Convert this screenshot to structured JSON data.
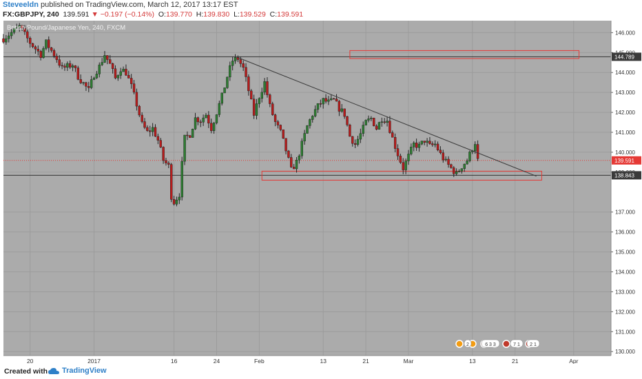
{
  "header": {
    "author": "Steveeldn",
    "published": "published on TradingView.com, March 12, 2017 13:17 EST",
    "symbol": "FX:GBPJPY, 240",
    "last": "139.591",
    "change": "−0.197 (−0.14%)",
    "o_label": "O:",
    "o_value": "139.770",
    "h_label": "H:",
    "h_value": "139.830",
    "l_label": "L:",
    "l_value": "139.529",
    "c_label": "C:",
    "c_value": "139.591"
  },
  "footer": {
    "created_with": "Created with",
    "brand": "TradingView"
  },
  "colors": {
    "plot_bg": "#ababab",
    "up": "#2e7d32",
    "down": "#b71c1c",
    "zone": "#e53935",
    "accent": "#2f80c8"
  },
  "chart_data": {
    "type": "candlestick",
    "title": "British Pound/Japanese Yen, 240, FXCM",
    "ylim": [
      129.8,
      146.6
    ],
    "y_ticks": [
      "146.000",
      "145.000",
      "144.000",
      "143.000",
      "142.000",
      "141.000",
      "140.000",
      "139.000",
      "137.000",
      "136.000",
      "135.000",
      "134.000",
      "133.000",
      "132.000",
      "131.000",
      "130.000"
    ],
    "x_ticks": [
      {
        "label": "20",
        "d": 5
      },
      {
        "label": "2017",
        "d": 17
      },
      {
        "label": "16",
        "d": 32
      },
      {
        "label": "24",
        "d": 40
      },
      {
        "label": "Feb",
        "d": 48
      },
      {
        "label": "13",
        "d": 60
      },
      {
        "label": "21",
        "d": 68
      },
      {
        "label": "Mar",
        "d": 76
      },
      {
        "label": "13",
        "d": 88
      },
      {
        "label": "21",
        "d": 96
      },
      {
        "label": "Apr",
        "d": 107
      }
    ],
    "x_range": [
      0,
      114
    ],
    "price_labels": [
      {
        "value": 144.789,
        "text": "144.789",
        "style": "dark"
      },
      {
        "value": 139.591,
        "text": "139.591",
        "style": "red"
      },
      {
        "value": 138.843,
        "text": "138.843",
        "style": "dark"
      }
    ],
    "horizontal_lines": [
      {
        "value": 144.789,
        "style": "solid"
      },
      {
        "value": 138.843,
        "style": "solid"
      },
      {
        "value": 139.591,
        "style": "dotted-red"
      }
    ],
    "trendline": {
      "x1": 44,
      "y1": 144.75,
      "x2": 100,
      "y2": 138.8
    },
    "zones": [
      {
        "x1": 65,
        "x2": 108,
        "y1": 144.7,
        "y2": 145.1
      },
      {
        "x1": 48.5,
        "x2": 101,
        "y1": 138.6,
        "y2": 139.05
      }
    ],
    "path": [
      [
        0,
        145.7
      ],
      [
        3,
        146.3
      ],
      [
        5,
        145.5
      ],
      [
        7,
        144.9
      ],
      [
        8,
        145.5
      ],
      [
        10,
        144.7
      ],
      [
        11,
        144.2
      ],
      [
        13,
        144.4
      ],
      [
        14,
        143.8
      ],
      [
        16,
        143.1
      ],
      [
        17,
        143.9
      ],
      [
        18,
        144.3
      ],
      [
        19,
        144.9
      ],
      [
        20,
        144.4
      ],
      [
        21,
        143.7
      ],
      [
        22,
        144.2
      ],
      [
        23,
        144.0
      ],
      [
        24,
        143.3
      ],
      [
        25,
        142.4
      ],
      [
        26,
        141.4
      ],
      [
        27,
        141.0
      ],
      [
        28,
        141.2
      ],
      [
        29,
        140.6
      ],
      [
        30,
        139.6
      ],
      [
        31,
        139.3
      ],
      [
        31.5,
        137.8
      ],
      [
        32,
        137.5
      ],
      [
        33,
        137.9
      ],
      [
        33.5,
        139.4
      ],
      [
        34,
        140.7
      ],
      [
        35,
        140.9
      ],
      [
        36,
        141.7
      ],
      [
        37,
        141.6
      ],
      [
        38,
        141.9
      ],
      [
        39,
        141.2
      ],
      [
        40,
        142.0
      ],
      [
        41,
        142.8
      ],
      [
        42,
        143.8
      ],
      [
        43,
        144.6
      ],
      [
        44,
        144.7
      ],
      [
        45,
        144.2
      ],
      [
        46,
        143.1
      ],
      [
        47,
        141.9
      ],
      [
        48,
        142.8
      ],
      [
        49,
        143.5
      ],
      [
        50,
        142.3
      ],
      [
        51,
        141.5
      ],
      [
        52,
        141.0
      ],
      [
        53,
        140.1
      ],
      [
        54,
        139.1
      ],
      [
        55,
        139.5
      ],
      [
        56,
        140.4
      ],
      [
        57,
        141.3
      ],
      [
        58,
        141.9
      ],
      [
        59,
        142.3
      ],
      [
        60,
        142.6
      ],
      [
        61,
        142.5
      ],
      [
        62,
        142.6
      ],
      [
        63,
        142.2
      ],
      [
        64,
        141.9
      ],
      [
        65,
        140.8
      ],
      [
        66,
        140.4
      ],
      [
        67,
        140.9
      ],
      [
        68,
        141.5
      ],
      [
        69,
        141.7
      ],
      [
        70,
        141.2
      ],
      [
        71,
        141.7
      ],
      [
        72,
        141.6
      ],
      [
        73,
        140.7
      ],
      [
        74,
        139.9
      ],
      [
        75,
        139.2
      ],
      [
        76,
        139.8
      ],
      [
        77,
        140.4
      ],
      [
        78,
        140.3
      ],
      [
        79,
        140.6
      ],
      [
        80,
        140.3
      ],
      [
        81,
        140.4
      ],
      [
        82,
        139.9
      ],
      [
        83,
        139.5
      ],
      [
        84,
        139.2
      ],
      [
        85,
        138.9
      ],
      [
        86,
        139.3
      ],
      [
        87,
        139.6
      ],
      [
        88,
        140.2
      ],
      [
        88.5,
        140.5
      ],
      [
        89,
        139.591
      ]
    ]
  },
  "event_markers": [
    "2",
    "6 3 3",
    "7 1",
    "2 1"
  ]
}
